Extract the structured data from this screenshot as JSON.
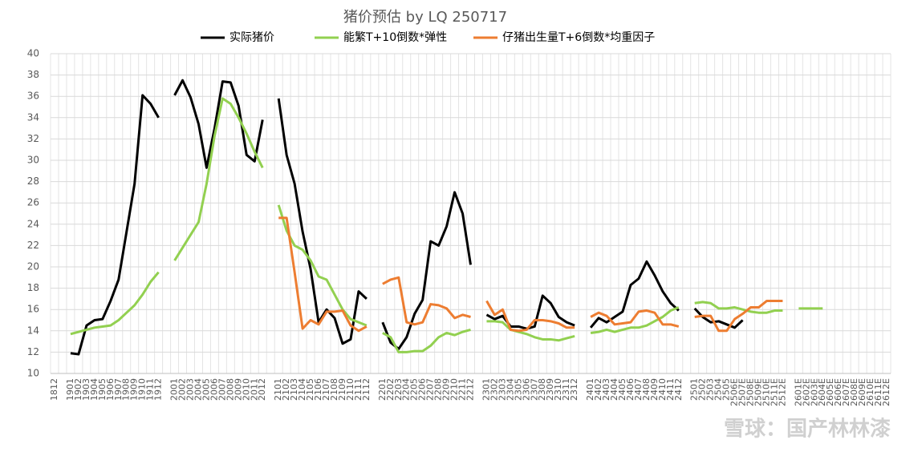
{
  "chart_data": {
    "type": "line",
    "title": "猪价预估  by LQ 250717",
    "watermark": "雪球：国产林林漆",
    "categories": [
      "1812",
      null,
      "1901",
      "1902",
      "1903",
      "1904",
      "1905",
      "1906",
      "1907",
      "1908",
      "1909",
      "1910",
      "1911",
      "1912",
      null,
      "2001",
      "2002",
      "2003",
      "2004",
      "2005",
      "2006",
      "2007",
      "2008",
      "2009",
      "2010",
      "2011",
      "2012",
      null,
      "2101",
      "2102",
      "2103",
      "2104",
      "2105",
      "2106",
      "2107",
      "2108",
      "2109",
      "2110",
      "2111",
      "2112",
      null,
      "2201",
      "2202",
      "2203",
      "2204",
      "2205",
      "2206",
      "2207",
      "2208",
      "2209",
      "2210",
      "2211",
      "2212",
      null,
      "2301",
      "2302",
      "2303",
      "2304",
      "2305",
      "2306",
      "2307",
      "2308",
      "2309",
      "2310",
      "2311",
      "2312",
      null,
      "2401",
      "2402",
      "2403",
      "2404",
      "2405",
      "2406",
      "2407",
      "2408",
      "2409",
      "2410",
      "2411",
      "2412",
      null,
      "2501",
      "2502",
      "2503",
      "2504",
      "2505",
      "2506E",
      "2507E",
      "2508E",
      "2509E",
      "2510E",
      "2511E",
      "2512E",
      null,
      "2601E",
      "2602E",
      "2603E",
      "2604E",
      "2605E",
      "2606E",
      "2607E",
      "2608E",
      "2609E",
      "2610E",
      "2611E",
      "2612E"
    ],
    "series": [
      {
        "name": "实际猪价",
        "color": "#000000",
        "values": [
          null,
          null,
          11.9,
          11.8,
          14.5,
          15.0,
          15.1,
          16.8,
          18.8,
          23.3,
          27.8,
          36.1,
          35.3,
          34.0,
          null,
          36.1,
          37.5,
          35.9,
          33.4,
          29.3,
          33.0,
          37.4,
          37.3,
          35.1,
          30.5,
          29.9,
          33.8,
          null,
          35.8,
          30.5,
          27.8,
          23.3,
          19.8,
          14.8,
          16.0,
          15.2,
          12.8,
          13.2,
          17.7,
          17.0,
          null,
          14.8,
          12.9,
          12.3,
          13.4,
          15.6,
          16.9,
          22.4,
          22.0,
          23.8,
          27.0,
          25.0,
          20.2,
          null,
          15.5,
          15.1,
          15.4,
          14.4,
          14.4,
          14.2,
          14.4,
          17.3,
          16.6,
          15.3,
          14.8,
          14.5,
          null,
          14.3,
          15.2,
          14.8,
          15.3,
          15.8,
          18.3,
          18.9,
          20.5,
          19.2,
          17.7,
          16.6,
          15.9,
          null,
          16.1,
          15.3,
          14.8,
          14.9,
          14.6,
          14.3,
          15.0,
          null,
          null,
          null,
          null,
          null,
          null,
          null,
          null,
          null,
          null,
          null,
          null,
          null,
          null,
          null,
          null,
          null,
          null
        ]
      },
      {
        "name": "能繁T+10倒数*弹性",
        "color": "#92d050",
        "values": [
          null,
          null,
          13.7,
          13.9,
          14.1,
          14.3,
          14.4,
          14.5,
          15.0,
          15.7,
          16.4,
          17.4,
          18.6,
          19.5,
          null,
          20.6,
          21.8,
          23.0,
          24.2,
          27.8,
          32.3,
          35.8,
          35.3,
          34.0,
          32.5,
          30.8,
          29.3,
          null,
          25.8,
          23.4,
          22.0,
          21.6,
          20.6,
          19.1,
          18.8,
          17.4,
          16.0,
          15.1,
          14.8,
          14.5,
          null,
          13.8,
          13.4,
          12.0,
          12.0,
          12.1,
          12.1,
          12.6,
          13.4,
          13.8,
          13.6,
          13.9,
          14.1,
          null,
          14.9,
          14.9,
          14.8,
          14.1,
          13.9,
          13.7,
          13.4,
          13.2,
          13.2,
          13.1,
          13.3,
          13.5,
          null,
          13.8,
          13.9,
          14.1,
          13.9,
          14.1,
          14.3,
          14.3,
          14.5,
          14.9,
          15.3,
          15.9,
          16.2,
          null,
          16.6,
          16.7,
          16.6,
          16.1,
          16.1,
          16.2,
          16.0,
          15.8,
          15.7,
          15.7,
          15.9,
          15.9,
          null,
          16.1,
          16.1,
          16.1,
          16.1,
          null,
          null,
          null,
          null,
          null,
          null,
          null,
          null
        ]
      },
      {
        "name": "仔猪出生量T+6倒数*均重因子",
        "color": "#ed7d31",
        "values": [
          null,
          null,
          null,
          null,
          null,
          null,
          null,
          null,
          null,
          null,
          null,
          null,
          null,
          null,
          null,
          null,
          null,
          null,
          null,
          null,
          null,
          null,
          null,
          null,
          null,
          null,
          null,
          null,
          24.6,
          24.6,
          19.5,
          14.2,
          15.0,
          14.6,
          15.8,
          15.8,
          15.9,
          14.5,
          14.0,
          14.4,
          null,
          18.4,
          18.8,
          19.0,
          14.8,
          14.6,
          14.8,
          16.5,
          16.4,
          16.1,
          15.2,
          15.5,
          15.3,
          null,
          16.8,
          15.5,
          16.0,
          14.1,
          14.0,
          14.1,
          15.0,
          15.0,
          14.9,
          14.7,
          14.3,
          14.3,
          null,
          15.3,
          15.7,
          15.4,
          14.6,
          14.7,
          14.8,
          15.8,
          15.9,
          15.7,
          14.6,
          14.6,
          14.4,
          null,
          15.3,
          15.4,
          15.4,
          14.0,
          14.0,
          15.1,
          15.6,
          16.2,
          16.2,
          16.8,
          16.8,
          16.8,
          null,
          null,
          null,
          null,
          null,
          null,
          null,
          null,
          null,
          null,
          null,
          null,
          null
        ]
      }
    ],
    "ylim": [
      10,
      40
    ],
    "yticks": [
      10,
      12,
      14,
      16,
      18,
      20,
      22,
      24,
      26,
      28,
      30,
      32,
      34,
      36,
      38,
      40
    ],
    "grid": true,
    "legend": "top"
  }
}
